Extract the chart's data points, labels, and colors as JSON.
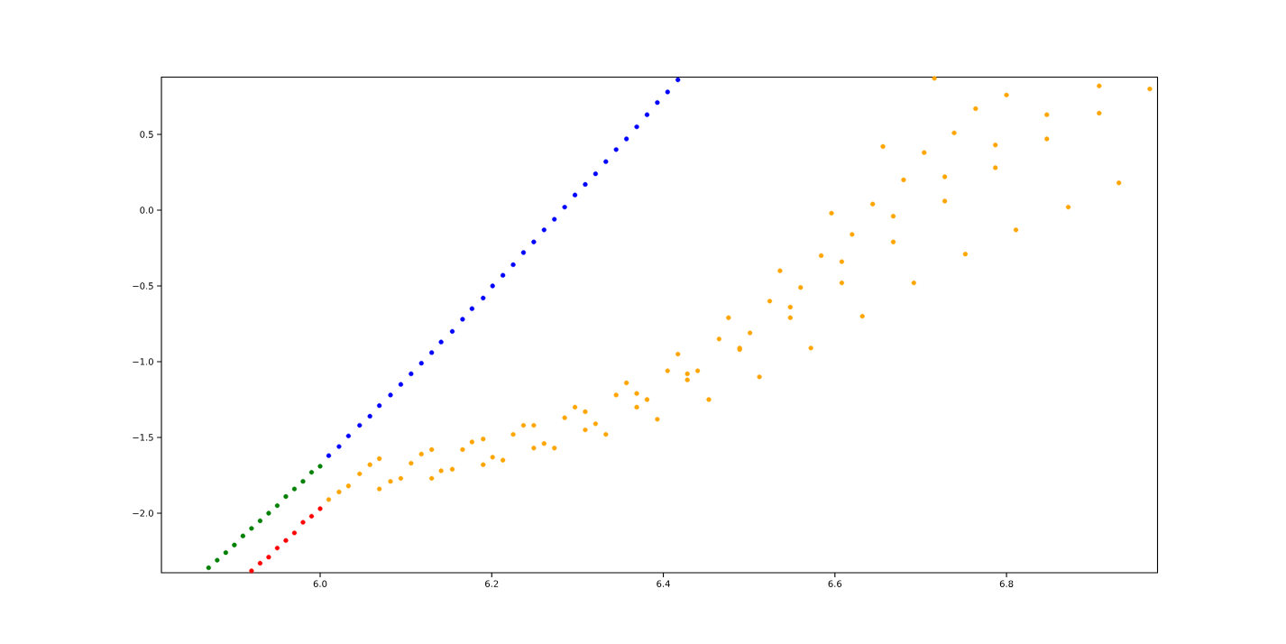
{
  "chart_data": {
    "type": "scatter",
    "marker": "circle",
    "xlim": [
      5.815,
      6.976
    ],
    "ylim": [
      -2.393,
      0.878
    ],
    "xticks": [
      {
        "value": 6.0,
        "label": "6.0"
      },
      {
        "value": 6.2,
        "label": "6.2"
      },
      {
        "value": 6.4,
        "label": "6.4"
      },
      {
        "value": 6.6,
        "label": "6.6"
      },
      {
        "value": 6.8,
        "label": "6.8"
      }
    ],
    "yticks": [
      {
        "value": -2.0,
        "label": "−2.0"
      },
      {
        "value": -1.5,
        "label": "−1.5"
      },
      {
        "value": -1.0,
        "label": "−1.0"
      },
      {
        "value": -0.5,
        "label": "−0.5"
      },
      {
        "value": 0.0,
        "label": "0.0"
      },
      {
        "value": 0.5,
        "label": "0.5"
      }
    ],
    "series": [
      {
        "color": "#ffa500",
        "x": [
          6.01,
          6.022,
          6.033,
          6.046,
          6.058,
          6.069,
          6.069,
          6.082,
          6.094,
          6.106,
          6.118,
          6.13,
          6.13,
          6.141,
          6.154,
          6.166,
          6.177,
          6.19,
          6.19,
          6.201,
          6.213,
          6.225,
          6.237,
          6.249,
          6.249,
          6.261,
          6.273,
          6.285,
          6.297,
          6.309,
          6.309,
          6.321,
          6.333,
          6.345,
          6.357,
          6.369,
          6.369,
          6.381,
          6.393,
          6.405,
          6.417,
          6.428,
          6.428,
          6.44,
          6.453,
          6.465,
          6.476,
          6.489,
          6.489,
          6.501,
          6.512,
          6.524,
          6.536,
          6.548,
          6.548,
          6.56,
          6.572,
          6.584,
          6.596,
          6.608,
          6.608,
          6.62,
          6.632,
          6.644,
          6.656,
          6.668,
          6.668,
          6.68,
          6.692,
          6.704,
          6.716,
          6.728,
          6.728,
          6.739,
          6.752,
          6.764,
          6.787,
          6.787,
          6.8,
          6.811,
          6.847,
          6.847,
          6.872,
          6.908,
          6.908,
          6.931,
          6.967
        ],
        "values": [
          -1.91,
          -1.86,
          -1.82,
          -1.74,
          -1.68,
          -1.64,
          -1.84,
          -1.79,
          -1.77,
          -1.67,
          -1.61,
          -1.58,
          -1.77,
          -1.72,
          -1.71,
          -1.58,
          -1.53,
          -1.51,
          -1.68,
          -1.63,
          -1.65,
          -1.48,
          -1.42,
          -1.42,
          -1.57,
          -1.54,
          -1.57,
          -1.37,
          -1.3,
          -1.33,
          -1.45,
          -1.41,
          -1.48,
          -1.22,
          -1.14,
          -1.21,
          -1.3,
          -1.25,
          -1.38,
          -1.06,
          -0.95,
          -1.08,
          -1.12,
          -1.06,
          -1.25,
          -0.85,
          -0.71,
          -0.91,
          -0.92,
          -0.81,
          -1.1,
          -0.6,
          -0.4,
          -0.64,
          -0.71,
          -0.51,
          -0.91,
          -0.3,
          -0.02,
          -0.34,
          -0.48,
          -0.16,
          -0.7,
          0.04,
          0.42,
          -0.04,
          -0.21,
          0.2,
          -0.48,
          0.38,
          0.87,
          0.22,
          0.06,
          0.51,
          -0.29,
          0.67,
          0.43,
          0.28,
          0.76,
          -0.13,
          0.63,
          0.47,
          0.02,
          0.82,
          0.64,
          0.18,
          0.8
        ]
      },
      {
        "color": "#0000ff",
        "x": [
          6.01,
          6.022,
          6.033,
          6.046,
          6.058,
          6.069,
          6.082,
          6.094,
          6.106,
          6.118,
          6.13,
          6.141,
          6.154,
          6.166,
          6.177,
          6.19,
          6.201,
          6.213,
          6.225,
          6.237,
          6.249,
          6.261,
          6.273,
          6.285,
          6.297,
          6.309,
          6.321,
          6.333,
          6.345,
          6.357,
          6.369,
          6.381,
          6.393,
          6.405,
          6.417
        ],
        "values": [
          -1.62,
          -1.56,
          -1.49,
          -1.42,
          -1.36,
          -1.29,
          -1.22,
          -1.15,
          -1.08,
          -1.01,
          -0.94,
          -0.87,
          -0.8,
          -0.72,
          -0.65,
          -0.58,
          -0.5,
          -0.43,
          -0.36,
          -0.28,
          -0.21,
          -0.13,
          -0.06,
          0.02,
          0.1,
          0.17,
          0.24,
          0.32,
          0.4,
          0.47,
          0.55,
          0.63,
          0.71,
          0.78,
          0.86
        ]
      },
      {
        "color": "#008000",
        "x": [
          5.87,
          5.88,
          5.89,
          5.9,
          5.91,
          5.92,
          5.93,
          5.94,
          5.95,
          5.96,
          5.97,
          5.98,
          5.99,
          6.0
        ],
        "values": [
          -2.36,
          -2.31,
          -2.26,
          -2.21,
          -2.15,
          -2.1,
          -2.05,
          -2.0,
          -1.95,
          -1.89,
          -1.84,
          -1.79,
          -1.73,
          -1.69
        ]
      },
      {
        "color": "#ff0000",
        "x": [
          5.92,
          5.93,
          5.94,
          5.95,
          5.96,
          5.97,
          5.98,
          5.99,
          6.0
        ],
        "values": [
          -2.38,
          -2.33,
          -2.29,
          -2.23,
          -2.18,
          -2.13,
          -2.06,
          -2.02,
          -1.97
        ]
      }
    ]
  }
}
